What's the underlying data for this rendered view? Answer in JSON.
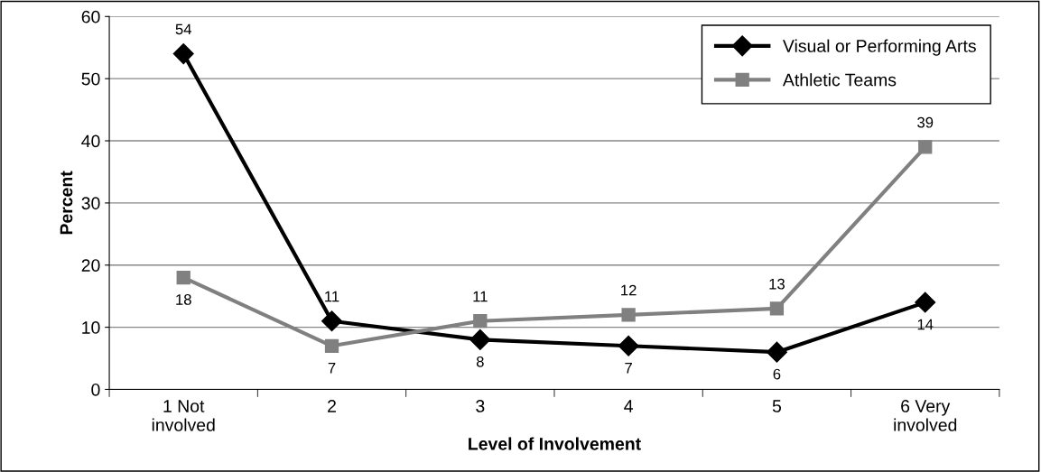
{
  "chart_data": {
    "type": "line",
    "xlabel": "Level of Involvement",
    "ylabel": "Percent",
    "categories": [
      "1 Not\ninvolved",
      "2",
      "3",
      "4",
      "5",
      "6 Very\ninvolved"
    ],
    "series": [
      {
        "name": "Visual or Performing Arts",
        "color": "#000000",
        "marker": "diamond",
        "values": [
          54,
          11,
          8,
          7,
          6,
          14
        ]
      },
      {
        "name": "Athletic Teams",
        "color": "#808080",
        "marker": "square",
        "values": [
          18,
          7,
          11,
          12,
          13,
          39
        ]
      }
    ],
    "ylim": [
      0,
      60
    ],
    "yticks": [
      0,
      10,
      20,
      30,
      40,
      50,
      60
    ],
    "grid": "y",
    "legend": "top right",
    "data_labels": true,
    "line_style": "solid"
  }
}
